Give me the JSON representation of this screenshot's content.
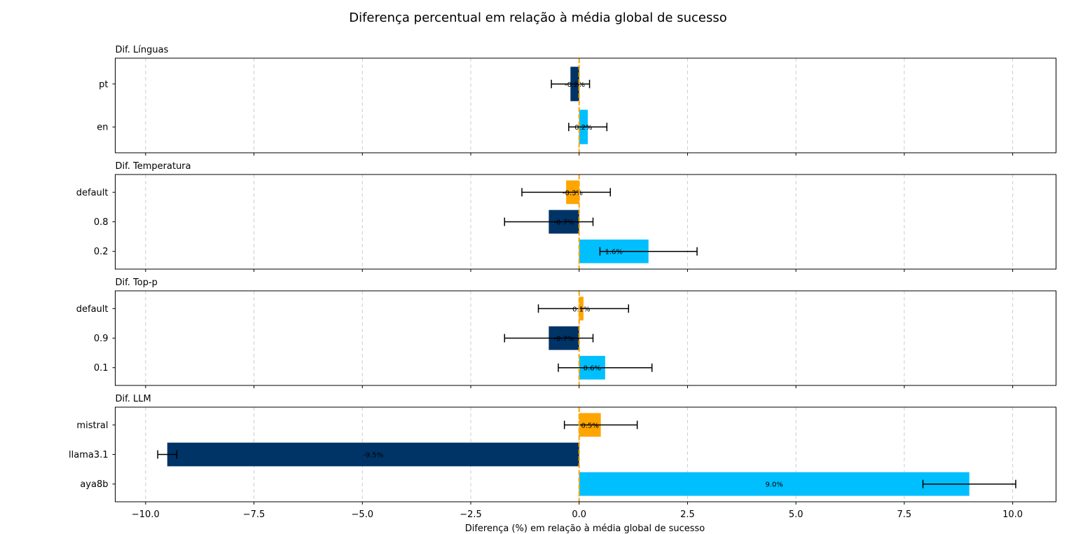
{
  "title": "Diferença percentual em relação à média global de sucesso",
  "xlabel": "Diferença (%) em relação à média global de sucesso",
  "colors": {
    "cyan": "#00bfff",
    "navy": "#003366",
    "orange": "#ffa500",
    "zero_line": "#ffa500",
    "grid": "#cccccc"
  },
  "x_ticks": [
    "−10.0",
    "−7.5",
    "−5.0",
    "−2.5",
    "0.0",
    "2.5",
    "5.0",
    "7.5",
    "10.0"
  ],
  "chart_data": [
    {
      "type": "bar",
      "orientation": "horizontal",
      "title": "Dif. Línguas",
      "xlim": [
        -10.7,
        11.0
      ],
      "grid": "x dashed",
      "categories": [
        "en",
        "pt"
      ],
      "values": [
        0.2,
        -0.2
      ],
      "labels": [
        "0.2%",
        "-0.2%"
      ],
      "errors": [
        0.44,
        0.44
      ],
      "bar_colors": [
        "cyan",
        "navy"
      ]
    },
    {
      "type": "bar",
      "orientation": "horizontal",
      "title": "Dif. Temperatura",
      "xlim": [
        -10.7,
        11.0
      ],
      "grid": "x dashed",
      "categories": [
        "0.2",
        "0.8",
        "default"
      ],
      "values": [
        1.6,
        -0.7,
        -0.3
      ],
      "labels": [
        "1.6%",
        "-0.7%",
        "-0.3%"
      ],
      "errors": [
        1.12,
        1.02,
        1.02
      ],
      "bar_colors": [
        "cyan",
        "navy",
        "orange"
      ]
    },
    {
      "type": "bar",
      "orientation": "horizontal",
      "title": "Dif. Top-p",
      "xlim": [
        -10.7,
        11.0
      ],
      "grid": "x dashed",
      "categories": [
        "0.1",
        "0.9",
        "default"
      ],
      "values": [
        0.6,
        -0.7,
        0.1
      ],
      "labels": [
        "0.6%",
        "-0.7%",
        "0.1%"
      ],
      "errors": [
        1.08,
        1.02,
        1.04
      ],
      "bar_colors": [
        "cyan",
        "navy",
        "orange"
      ]
    },
    {
      "type": "bar",
      "orientation": "horizontal",
      "title": "Dif. LLM",
      "xlim": [
        -10.7,
        11.0
      ],
      "grid": "x dashed",
      "categories": [
        "aya8b",
        "llama3.1",
        "mistral"
      ],
      "values": [
        9.0,
        -9.5,
        0.5
      ],
      "labels": [
        "9.0%",
        "-9.5%",
        "0.5%"
      ],
      "errors": [
        1.07,
        0.22,
        0.84
      ],
      "bar_colors": [
        "cyan",
        "navy",
        "orange"
      ]
    }
  ]
}
